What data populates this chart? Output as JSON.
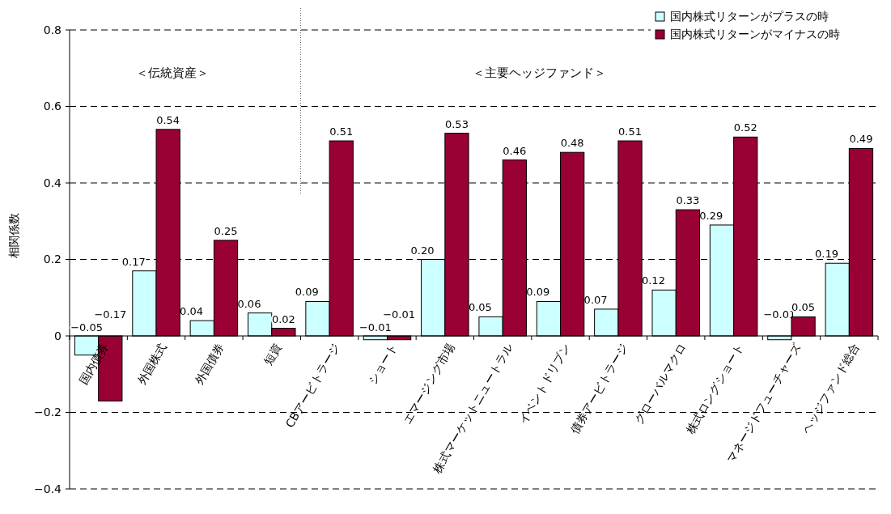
{
  "chart_data": {
    "type": "bar",
    "ylabel": "相関係数",
    "categories": [
      "国内債券",
      "外国株式",
      "外国債券",
      "短資",
      "CBアービトラージ",
      "ショート",
      "エマージング市場",
      "株式マーケットニュートラル",
      "イベントドリブン",
      "債券アービトラージ",
      "グローバルマクロ",
      "株式ロングショート",
      "マネージドフューチャーズ",
      "ヘッジファンド総合"
    ],
    "series": [
      {
        "name": "国内株式リターンがプラスの時",
        "color": "#ccffff",
        "values": [
          -0.05,
          0.17,
          0.04,
          0.06,
          0.09,
          -0.01,
          0.2,
          0.05,
          0.09,
          0.07,
          0.12,
          0.29,
          -0.01,
          0.19
        ],
        "value_labels": [
          "−0.05",
          "0.17",
          "0.04",
          "0.06",
          "0.09",
          "−0.01",
          "0.20",
          "0.05",
          "0.09",
          "0.07",
          "0.12",
          "0.29",
          "−0.01",
          "0.19"
        ]
      },
      {
        "name": "国内株式リターンがマイナスの時",
        "color": "#990033",
        "values": [
          -0.17,
          0.54,
          0.25,
          0.02,
          0.51,
          -0.01,
          0.53,
          0.46,
          0.48,
          0.51,
          0.33,
          0.52,
          0.05,
          0.49
        ],
        "value_labels": [
          "−0.17",
          "0.54",
          "0.25",
          "0.02",
          "0.51",
          "−0.01",
          "0.53",
          "0.46",
          "0.48",
          "0.51",
          "0.33",
          "0.52",
          "0.05",
          "0.49"
        ]
      }
    ],
    "ylim": [
      -0.4,
      0.8
    ],
    "yticks": [
      {
        "value": -0.4,
        "label": "−0.4"
      },
      {
        "value": -0.2,
        "label": "−0.2"
      },
      0,
      0.2,
      0.4,
      0.6,
      0.8
    ],
    "grid": "y",
    "legend": "top right",
    "annotations": [
      "＜伝統資産＞",
      "＜主要ヘッジファンド＞"
    ]
  }
}
